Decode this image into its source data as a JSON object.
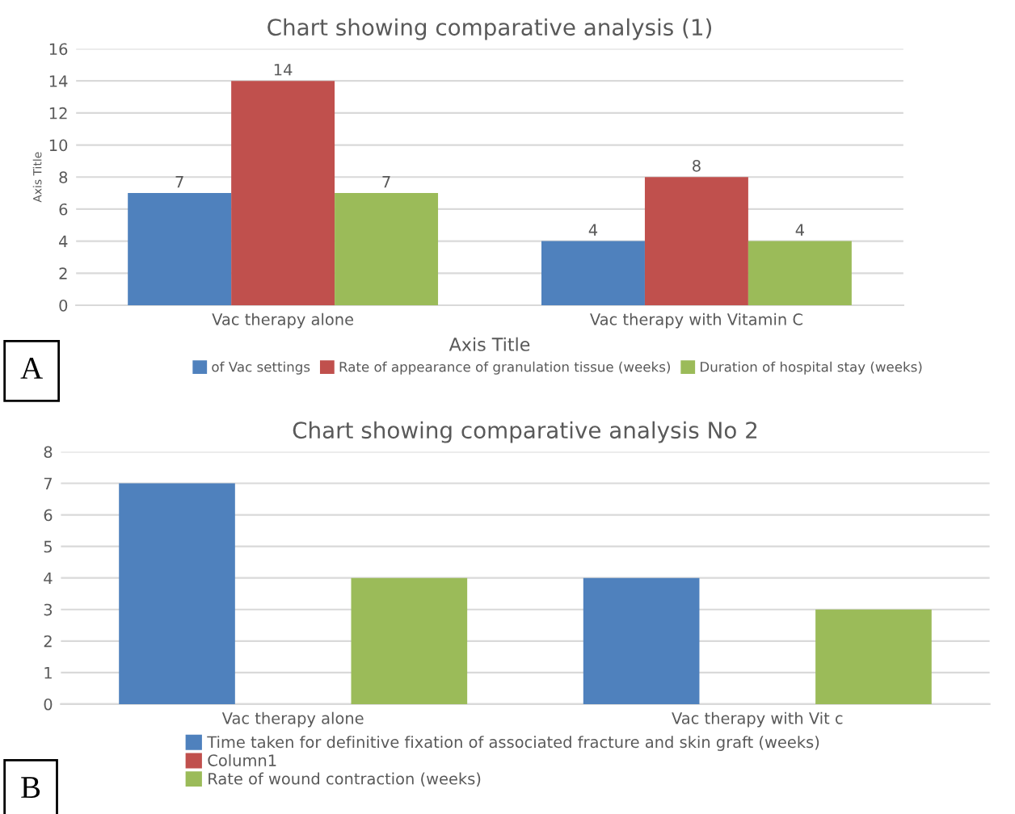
{
  "chart_data": [
    {
      "type": "bar",
      "title": "Chart showing comparative analysis (1)",
      "xlabel": "Axis Title",
      "ylabel": "Axis Title",
      "categories": [
        "Vac therapy alone",
        "Vac therapy with Vitamin C"
      ],
      "series": [
        {
          "name": "of Vac settings",
          "color": "#4f81bd",
          "values": [
            7,
            4
          ]
        },
        {
          "name": "Rate of appearance of granulation tissue (weeks)",
          "color": "#c0504d",
          "values": [
            14,
            8
          ]
        },
        {
          "name": "Duration of hospital stay (weeks)",
          "color": "#9bbb59",
          "values": [
            7,
            4
          ]
        }
      ],
      "ylim": [
        0,
        16
      ],
      "yticks": [
        0,
        2,
        4,
        6,
        8,
        10,
        12,
        14,
        16
      ],
      "grid": "y",
      "legend": "bottom",
      "data_labels": true,
      "annotations": [
        "A"
      ]
    },
    {
      "type": "bar",
      "title": "Chart showing comparative analysis No 2",
      "categories": [
        "Vac therapy alone",
        "Vac therapy with Vit c"
      ],
      "series": [
        {
          "name": "Time taken for definitive fixation of associated fracture and skin graft (weeks)",
          "color": "#4f81bd",
          "values": [
            7,
            4
          ]
        },
        {
          "name": "Column1",
          "color": "#c0504d",
          "values": [
            null,
            null
          ]
        },
        {
          "name": "Rate of wound contraction (weeks)",
          "color": "#9bbb59",
          "values": [
            4,
            3
          ]
        }
      ],
      "ylim": [
        0,
        8
      ],
      "yticks": [
        0,
        1,
        2,
        3,
        4,
        5,
        6,
        7,
        8
      ],
      "grid": "y",
      "legend": "bottom",
      "annotations": [
        "B"
      ]
    }
  ]
}
